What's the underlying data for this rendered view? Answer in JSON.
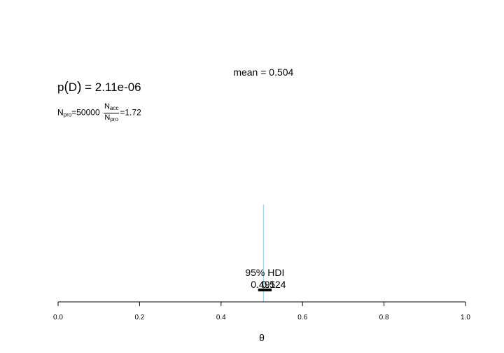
{
  "chart_data": {
    "type": "histogram",
    "title": "",
    "xlabel": "θ",
    "ylabel": "",
    "xlim": [
      0.0,
      1.0
    ],
    "xticks": [
      "0.0",
      "0.2",
      "0.4",
      "0.6",
      "0.8",
      "1.0"
    ],
    "ylim": [
      0,
      1
    ],
    "series": [
      {
        "values": [
          {
            "x": 0.504,
            "height": 1.0
          }
        ],
        "color": "#87ceeb"
      }
    ],
    "annotations": {
      "mean_label": "mean = 0.504",
      "mean": 0.504,
      "hdi_label": "95% HDI",
      "hdi_low": 0.491,
      "hdi_high": 0.524,
      "hdi_low_label": "0.491",
      "hdi_high_label": "0.524"
    },
    "grid": false,
    "legend": "none"
  },
  "evidence": {
    "pd_label": "p",
    "pd_arg": "D",
    "pd_value": "= 2.11e-06",
    "npro_sym": "N",
    "npro_sub": "pro",
    "npro_value": "=50000",
    "nacc_sym": "N",
    "nacc_sub": "acc",
    "ratio_value": "=1.72"
  }
}
